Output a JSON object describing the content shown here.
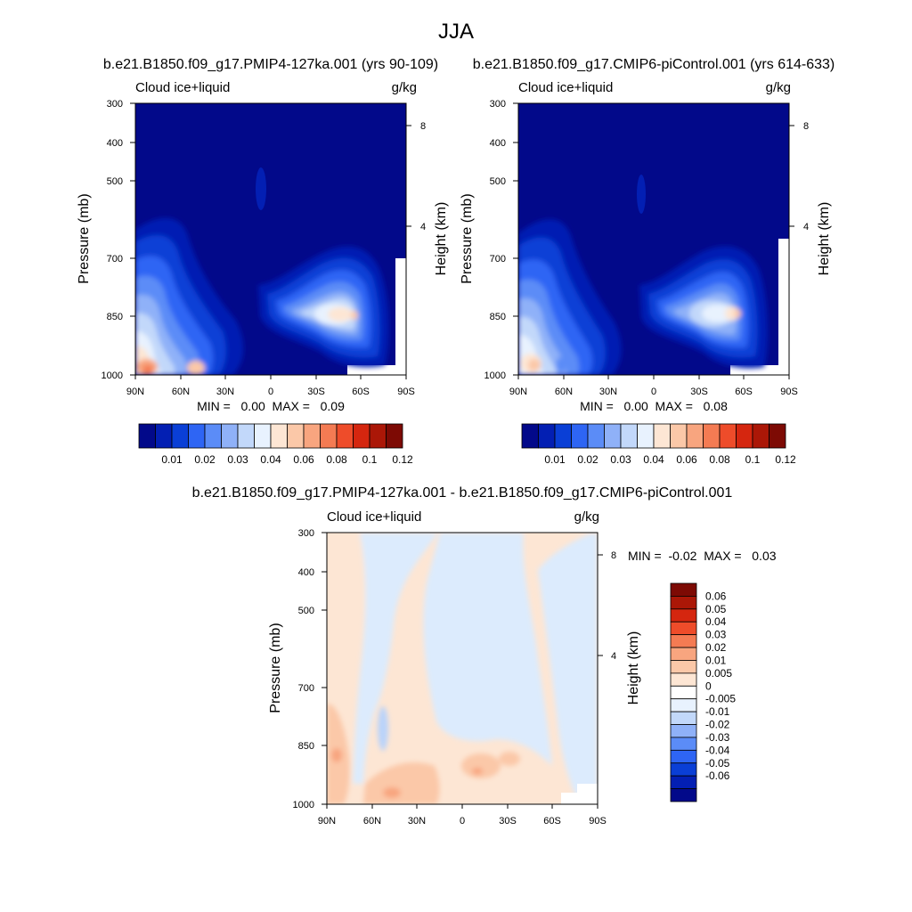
{
  "page_title": "JJA",
  "colors": {
    "seq": [
      "#02098a",
      "#031fb3",
      "#0a3fd6",
      "#2e65f4",
      "#5b8cf7",
      "#8fb1f8",
      "#c2d8fa",
      "#e8f2fe",
      "#fde6d4",
      "#fbc8a8",
      "#f8a57f",
      "#f47b53",
      "#ee4c2a",
      "#d5260f",
      "#ab1707",
      "#7d0a04"
    ],
    "div": [
      "#7d0a04",
      "#ab1707",
      "#d5260f",
      "#ee4c2a",
      "#f47b53",
      "#f8a57f",
      "#fbc8a8",
      "#fde6d4",
      "#ffffff",
      "#e8f2fe",
      "#c2d8fa",
      "#8fb1f8",
      "#5b8cf7",
      "#2e65f4",
      "#0a3fd6",
      "#031fb3",
      "#02098a"
    ],
    "positive_diff": "#fde6d4",
    "negative_diff": "#dcebfd"
  },
  "chart_data": [
    {
      "type": "heatmap",
      "title": "b.e21.B1850.f09_g17.PMIP4-127ka.001 (yrs 90-109)",
      "variable_label": "Cloud ice+liquid",
      "units_label": "g/kg",
      "ylabel": "Pressure (mb)",
      "y2label": "Height (km)",
      "x_ticks": [
        "90N",
        "60N",
        "30N",
        "0",
        "30S",
        "60S",
        "90S"
      ],
      "y_ticks": [
        "300",
        "400",
        "500",
        "700",
        "850",
        "1000"
      ],
      "y2_ticks": [
        "8",
        "4"
      ],
      "min_max_text": "MIN =   0.00  MAX =   0.09",
      "min": 0.0,
      "max": 0.09,
      "colorbar_labels": [
        "0.01",
        "0.02",
        "0.03",
        "0.04",
        "0.06",
        "0.08",
        "0.1",
        "0.12"
      ],
      "colorbar_orientation": "horizontal"
    },
    {
      "type": "heatmap",
      "title": "b.e21.B1850.f09_g17.CMIP6-piControl.001 (yrs 614-633)",
      "variable_label": "Cloud ice+liquid",
      "units_label": "g/kg",
      "ylabel": "Pressure (mb)",
      "y2label": "Height (km)",
      "x_ticks": [
        "90N",
        "60N",
        "30N",
        "0",
        "30S",
        "60S",
        "90S"
      ],
      "y_ticks": [
        "300",
        "400",
        "500",
        "700",
        "850",
        "1000"
      ],
      "y2_ticks": [
        "8",
        "4"
      ],
      "min_max_text": "MIN =   0.00  MAX =   0.08",
      "min": 0.0,
      "max": 0.08,
      "colorbar_labels": [
        "0.01",
        "0.02",
        "0.03",
        "0.04",
        "0.06",
        "0.08",
        "0.1",
        "0.12"
      ],
      "colorbar_orientation": "horizontal"
    },
    {
      "type": "heatmap",
      "title": "b.e21.B1850.f09_g17.PMIP4-127ka.001 - b.e21.B1850.f09_g17.CMIP6-piControl.001",
      "variable_label": "Cloud ice+liquid",
      "units_label": "g/kg",
      "ylabel": "Pressure (mb)",
      "y2label": "Height (km)",
      "x_ticks": [
        "90N",
        "60N",
        "30N",
        "0",
        "30S",
        "60S",
        "90S"
      ],
      "y_ticks": [
        "300",
        "400",
        "500",
        "700",
        "850",
        "1000"
      ],
      "y2_ticks": [
        "8",
        "4"
      ],
      "min_max_text": "MIN =  -0.02  MAX =   0.03",
      "min": -0.02,
      "max": 0.03,
      "colorbar_labels": [
        "0.06",
        "0.05",
        "0.04",
        "0.03",
        "0.02",
        "0.01",
        "0.005",
        "0",
        "-0.005",
        "-0.01",
        "-0.02",
        "-0.03",
        "-0.04",
        "-0.05",
        "-0.06"
      ],
      "colorbar_orientation": "vertical"
    }
  ]
}
